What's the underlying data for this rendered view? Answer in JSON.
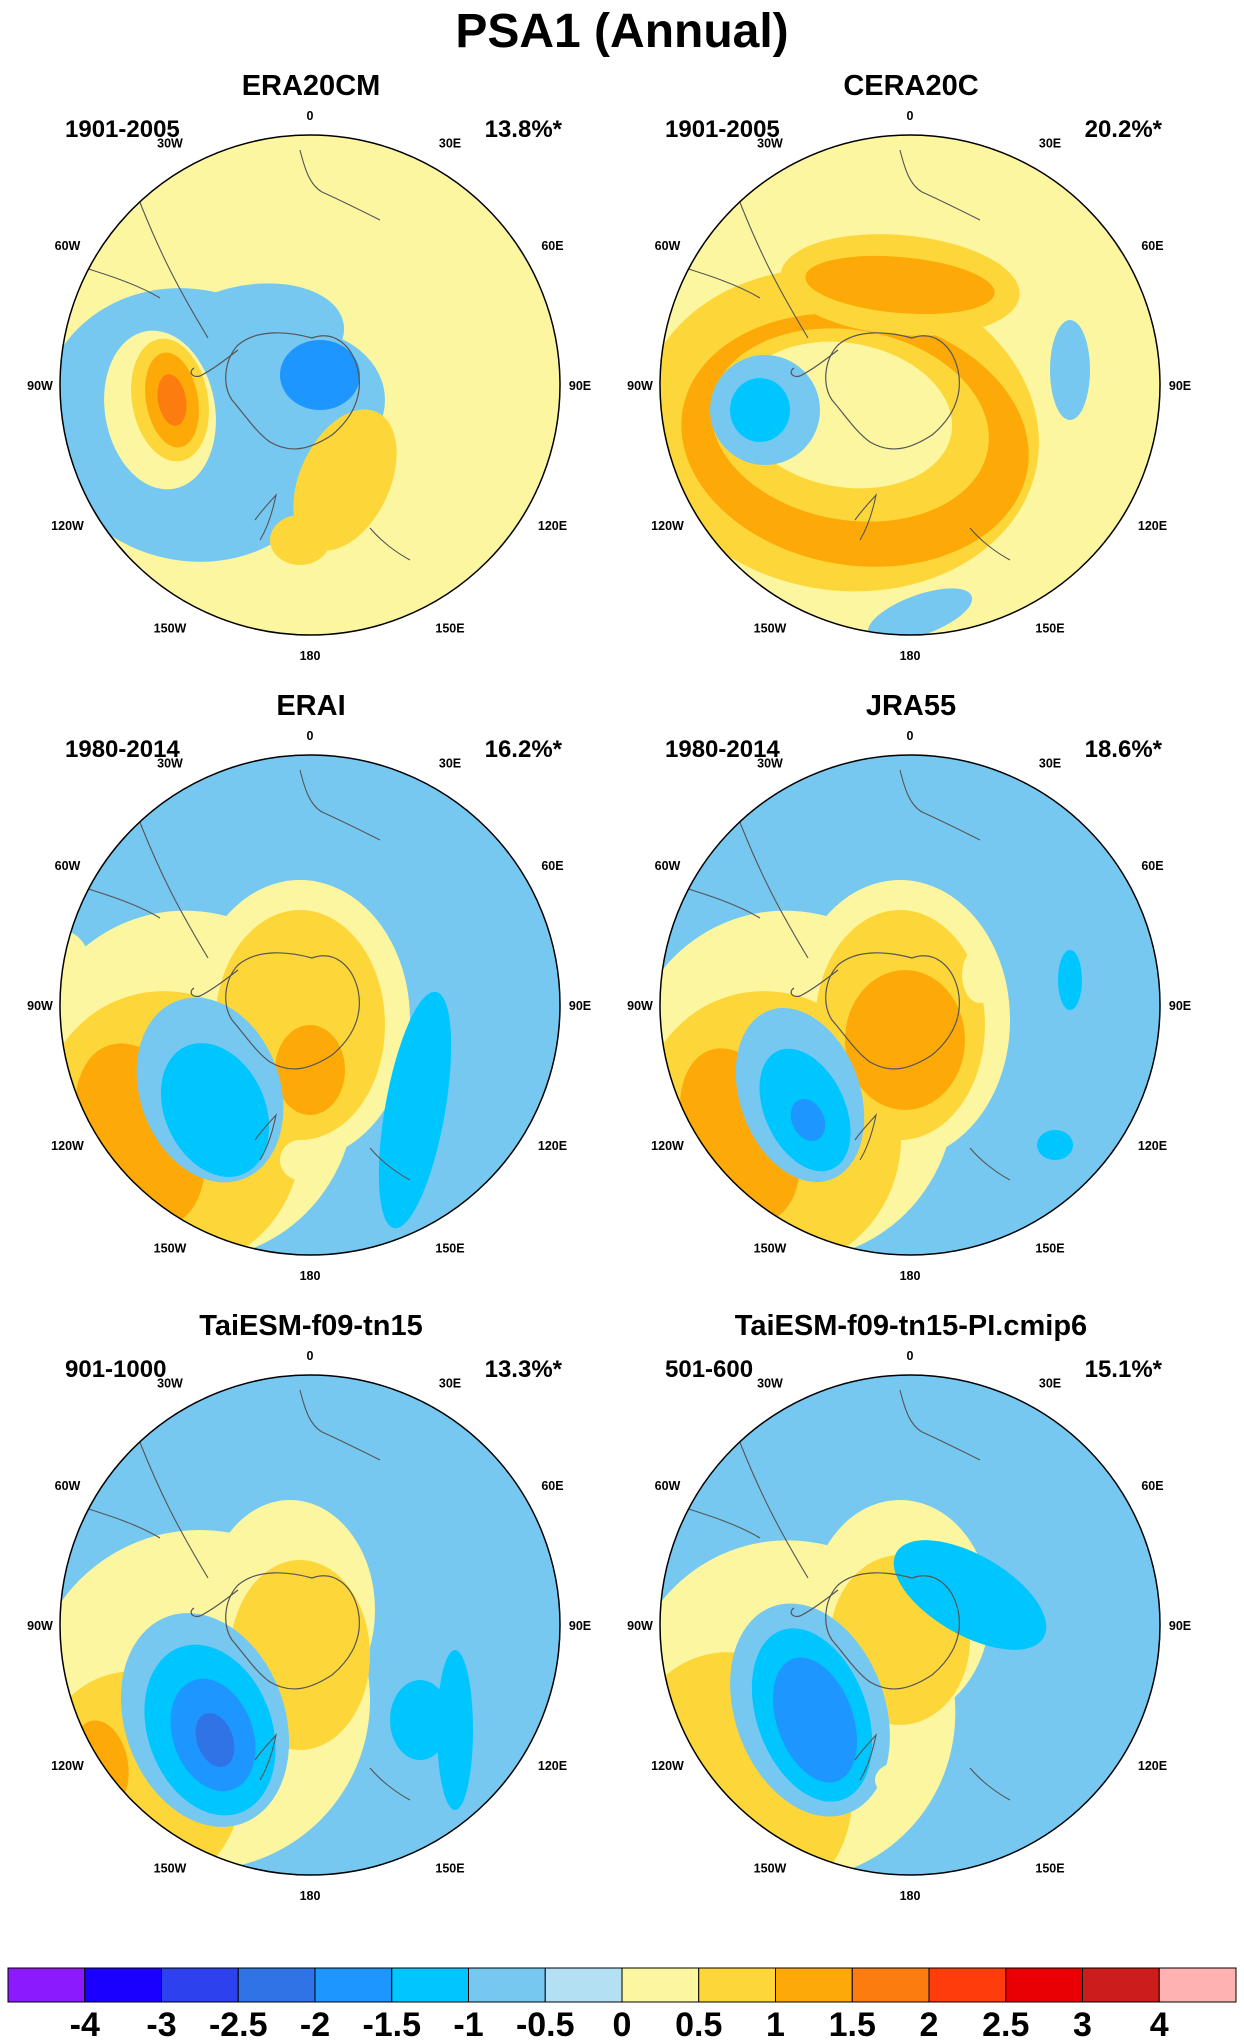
{
  "title": "PSA1 (Annual)",
  "panels": [
    {
      "name": "ERA20CM",
      "period": "1901-2005",
      "variance": "13.8%*",
      "pattern": "era20cm"
    },
    {
      "name": "CERA20C",
      "period": "1901-2005",
      "variance": "20.2%*",
      "pattern": "cera20c"
    },
    {
      "name": "ERAI",
      "period": "1980-2014",
      "variance": "16.2%*",
      "pattern": "erai"
    },
    {
      "name": "JRA55",
      "period": "1980-2014",
      "variance": "18.6%*",
      "pattern": "jra55"
    },
    {
      "name": "TaiESM-f09-tn15",
      "period": "901-1000",
      "variance": "13.3%*",
      "pattern": "taiesm"
    },
    {
      "name": "TaiESM-f09-tn15-PI.cmip6",
      "period": "501-600",
      "variance": "15.1%*",
      "pattern": "taiesm_pi"
    }
  ],
  "longitude_labels": [
    "0",
    "30E",
    "60E",
    "90E",
    "120E",
    "150E",
    "180",
    "150W",
    "120W",
    "90W",
    "60W",
    "30W"
  ],
  "colorbar": {
    "colors": [
      "#8c1aff",
      "#1a00ff",
      "#2e41ee",
      "#3073e6",
      "#1e96ff",
      "#00c6ff",
      "#76c8f0",
      "#b4e0f3",
      "#fdf6a0",
      "#fdd73a",
      "#fdaa09",
      "#fd7c0f",
      "#ff3c0b",
      "#e90005",
      "#cd1c1c",
      "#ffb2b2"
    ],
    "labels": [
      "-4",
      "-3",
      "-2.5",
      "-2",
      "-1.5",
      "-1",
      "-0.5",
      "0",
      "0.5",
      "1",
      "1.5",
      "2",
      "2.5",
      "3",
      "4"
    ]
  }
}
